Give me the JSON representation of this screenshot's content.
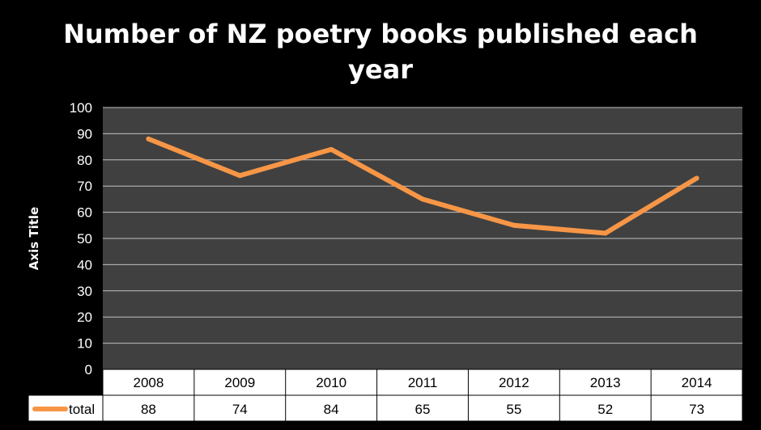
{
  "chart_data": {
    "type": "line",
    "title_line1": "Number of NZ poetry books published each",
    "title_line2": "year",
    "ylabel": "Axis Title",
    "categories": [
      "2008",
      "2009",
      "2010",
      "2011",
      "2012",
      "2013",
      "2014"
    ],
    "series": [
      {
        "name": "total",
        "values": [
          88,
          74,
          84,
          65,
          55,
          52,
          73
        ],
        "color": "#f79646"
      }
    ],
    "ylim": [
      0,
      100
    ],
    "yticks": [
      "0",
      "10",
      "20",
      "30",
      "40",
      "50",
      "60",
      "70",
      "80",
      "90",
      "100"
    ],
    "grid": true,
    "legend": "data-table",
    "colors": {
      "background": "#000000",
      "plot_background": "#404040",
      "gridline": "#bfbfbf",
      "table_background": "#ffffff"
    }
  }
}
